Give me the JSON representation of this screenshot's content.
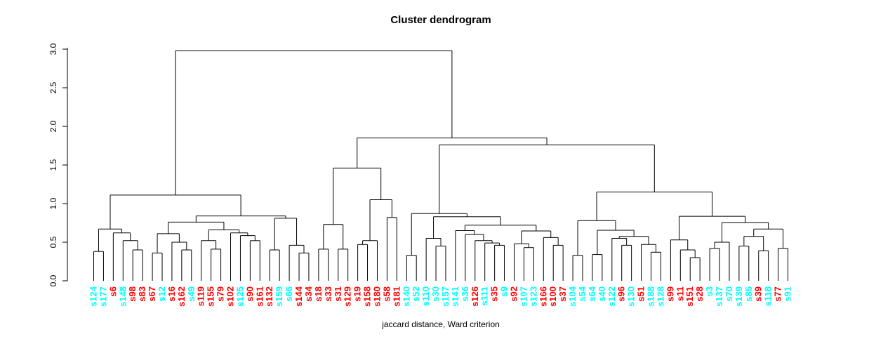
{
  "header": {
    "title": "Cluster dendrogram"
  },
  "footer": {
    "subtitle": "jaccard distance, Ward criterion"
  },
  "chart_data": {
    "type": "dendrogram",
    "title": "Cluster dendrogram",
    "xlabel": "jaccard distance, Ward criterion",
    "ylabel": "",
    "ylim": [
      0,
      3
    ],
    "y_ticks": [
      "0.0",
      "0.5",
      "1.0",
      "1.5",
      "2.0",
      "2.5",
      "3.0"
    ],
    "grid": false,
    "line_color": "#000000",
    "label_color_map": {
      "r": "#FF0000",
      "c": "#00FFFF"
    },
    "leaves": [
      [
        "s124",
        "c"
      ],
      [
        "s177",
        "c"
      ],
      [
        "s6",
        "r"
      ],
      [
        "s148",
        "c"
      ],
      [
        "s98",
        "r"
      ],
      [
        "s83",
        "r"
      ],
      [
        "s67",
        "r"
      ],
      [
        "s12",
        "c"
      ],
      [
        "s16",
        "r"
      ],
      [
        "s162",
        "r"
      ],
      [
        "s49",
        "c"
      ],
      [
        "s119",
        "r"
      ],
      [
        "s155",
        "r"
      ],
      [
        "s79",
        "r"
      ],
      [
        "s102",
        "r"
      ],
      [
        "s125",
        "c"
      ],
      [
        "s90",
        "r"
      ],
      [
        "s161",
        "r"
      ],
      [
        "s132",
        "r"
      ],
      [
        "s159",
        "c"
      ],
      [
        "s66",
        "c"
      ],
      [
        "s144",
        "r"
      ],
      [
        "s34",
        "r"
      ],
      [
        "s18",
        "r"
      ],
      [
        "s33",
        "r"
      ],
      [
        "s31",
        "r"
      ],
      [
        "s129",
        "r"
      ],
      [
        "s19",
        "r"
      ],
      [
        "s158",
        "r"
      ],
      [
        "s180",
        "r"
      ],
      [
        "s58",
        "r"
      ],
      [
        "s181",
        "r"
      ],
      [
        "s140",
        "c"
      ],
      [
        "s52",
        "c"
      ],
      [
        "s110",
        "c"
      ],
      [
        "s30",
        "c"
      ],
      [
        "s157",
        "c"
      ],
      [
        "s141",
        "c"
      ],
      [
        "s36",
        "c"
      ],
      [
        "s126",
        "r"
      ],
      [
        "s111",
        "c"
      ],
      [
        "s35",
        "r"
      ],
      [
        "s9",
        "c"
      ],
      [
        "s92",
        "r"
      ],
      [
        "s107",
        "c"
      ],
      [
        "s123",
        "c"
      ],
      [
        "s166",
        "r"
      ],
      [
        "s100",
        "r"
      ],
      [
        "s37",
        "r"
      ],
      [
        "s104",
        "c"
      ],
      [
        "s54",
        "c"
      ],
      [
        "s64",
        "c"
      ],
      [
        "s40",
        "c"
      ],
      [
        "s122",
        "c"
      ],
      [
        "s96",
        "r"
      ],
      [
        "s130",
        "c"
      ],
      [
        "s51",
        "r"
      ],
      [
        "s188",
        "c"
      ],
      [
        "s128",
        "c"
      ],
      [
        "s99",
        "r"
      ],
      [
        "s11",
        "r"
      ],
      [
        "s151",
        "r"
      ],
      [
        "s28",
        "r"
      ],
      [
        "s3",
        "c"
      ],
      [
        "s137",
        "c"
      ],
      [
        "s70",
        "c"
      ],
      [
        "s139",
        "c"
      ],
      [
        "s85",
        "c"
      ],
      [
        "s39",
        "r"
      ],
      [
        "s118",
        "c"
      ],
      [
        "s77",
        "r"
      ],
      [
        "s91",
        "c"
      ]
    ],
    "tree": [
      2.98,
      [
        1.11,
        [
          0.67,
          [
            0.38,
            0,
            1
          ],
          [
            0.62,
            2,
            [
              0.52,
              3,
              [
                0.4,
                4,
                5
              ]
            ]
          ]
        ],
        [
          0.84,
          [
            0.76,
            [
              0.61,
              [
                0.36,
                6,
                7
              ],
              [
                0.5,
                8,
                [
                  0.4,
                  9,
                  10
                ]
              ]
            ],
            [
              0.66,
              [
                0.52,
                11,
                [
                  0.41,
                  12,
                  13
                ]
              ],
              [
                0.62,
                14,
                [
                  0.585,
                  15,
                  [
                    0.52,
                    16,
                    17
                  ]
                ]
              ]
            ]
          ],
          [
            0.81,
            [
              0.4,
              18,
              19
            ],
            [
              0.46,
              20,
              [
                0.36,
                21,
                22
              ]
            ]
          ]
        ]
      ],
      [
        1.85,
        [
          1.46,
          [
            0.73,
            [
              0.41,
              23,
              24
            ],
            [
              0.41,
              25,
              26
            ]
          ],
          [
            1.05,
            [
              0.52,
              [
                0.47,
                27,
                28
              ],
              29
            ],
            [
              0.82,
              30,
              31
            ]
          ]
        ],
        [
          1.76,
          [
            0.87,
            [
              0.33,
              32,
              33
            ],
            [
              0.83,
              [
                0.55,
                34,
                [
                  0.45,
                  35,
                  36
                ]
              ],
              [
                0.72,
                [
                  0.65,
                  37,
                  [
                    0.6,
                    38,
                    [
                      0.52,
                      39,
                      [
                        0.49,
                        40,
                        [
                          0.46,
                          41,
                          42
                        ]
                      ]
                    ]
                  ]
                ],
                [
                  0.645,
                  [
                    0.48,
                    43,
                    [
                      0.43,
                      44,
                      45
                    ]
                  ],
                  [
                    0.56,
                    46,
                    [
                      0.46,
                      47,
                      48
                    ]
                  ]
                ]
              ]
            ]
          ],
          [
            1.15,
            [
              0.78,
              [
                0.33,
                49,
                50
              ],
              [
                0.655,
                [
                  0.34,
                  51,
                  52
                ],
                [
                  0.575,
                  [
                    0.55,
                    53,
                    [
                      0.46,
                      54,
                      55
                    ]
                  ],
                  [
                    0.47,
                    56,
                    [
                      0.37,
                      57,
                      58
                    ]
                  ]
                ]
              ]
            ],
            [
              0.835,
              [
                0.53,
                59,
                [
                  0.4,
                  60,
                  [
                    0.3,
                    61,
                    62
                  ]
                ]
              ],
              [
                0.755,
                [
                  0.5,
                  [
                    0.42,
                    63,
                    64
                  ],
                  65
                ],
                [
                  0.67,
                  [
                    0.575,
                    [
                      0.45,
                      66,
                      67
                    ],
                    [
                      0.39,
                      68,
                      69
                    ]
                  ],
                  [
                    0.42,
                    70,
                    71
                  ]
                ]
              ]
            ]
          ]
        ]
      ]
    ]
  }
}
